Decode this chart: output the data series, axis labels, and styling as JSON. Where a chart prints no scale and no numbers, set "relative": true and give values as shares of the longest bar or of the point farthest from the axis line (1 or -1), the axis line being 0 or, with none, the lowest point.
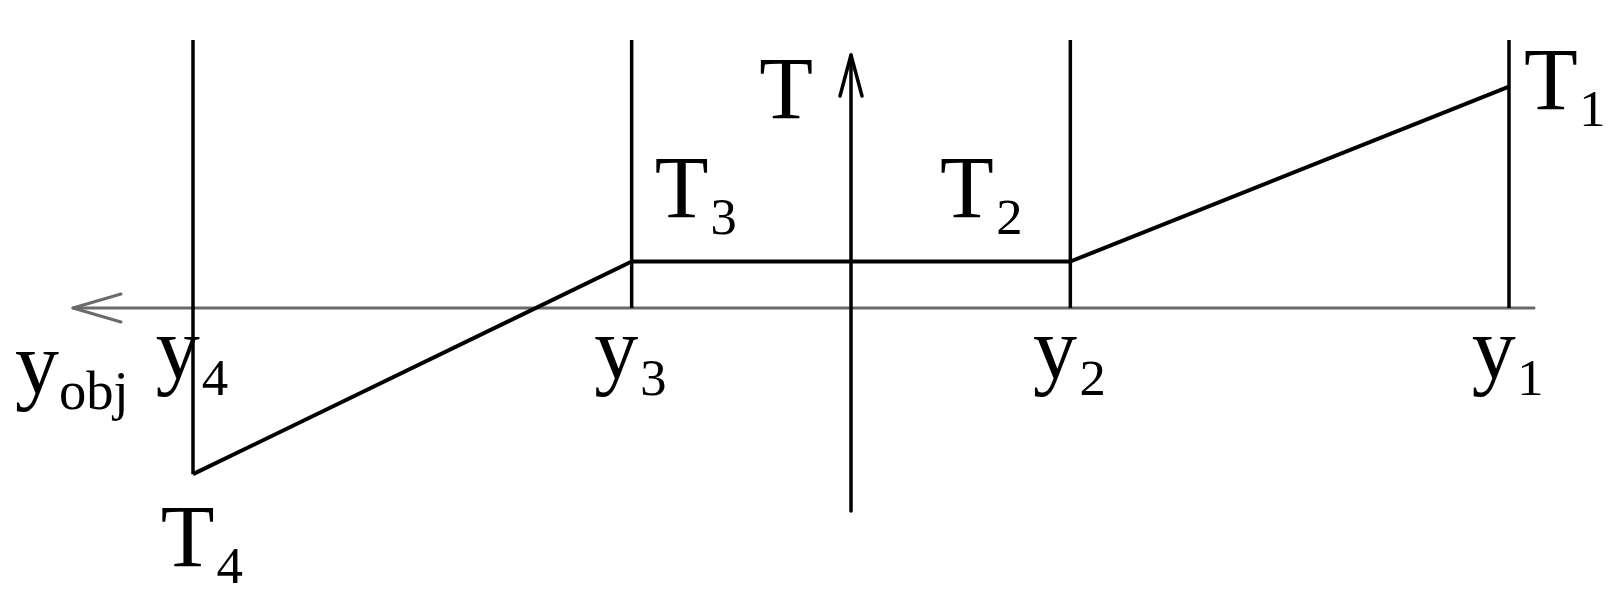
{
  "chart_data": {
    "type": "line",
    "xlabel": "y$_{obj}$",
    "ylabel": "T",
    "categories": [
      "y₄",
      "y₃",
      "y₂",
      "y₁"
    ],
    "values": [
      -0.75,
      0.21,
      0.21,
      1
    ],
    "color": "#000000",
    "relative": true,
    "annotations": [
      {
        "text": "T₄",
        "x": "y₄",
        "y": -0.75
      },
      {
        "text": "T₃",
        "x": "y₃",
        "y": 0.21
      },
      {
        "text": "T₂",
        "x": "y₂",
        "y": 0.21
      },
      {
        "text": "T₁",
        "x": "y₁",
        "y": 1
      }
    ],
    "ref_lines": [
      {
        "axis": "x",
        "value": "y₄",
        "color": "#000000"
      },
      {
        "axis": "x",
        "value": "y₃",
        "color": "#000000"
      },
      {
        "axis": "x",
        "value": "y₂",
        "color": "#000000"
      },
      {
        "axis": "x",
        "value": "y₁",
        "color": "#000000"
      }
    ]
  }
}
